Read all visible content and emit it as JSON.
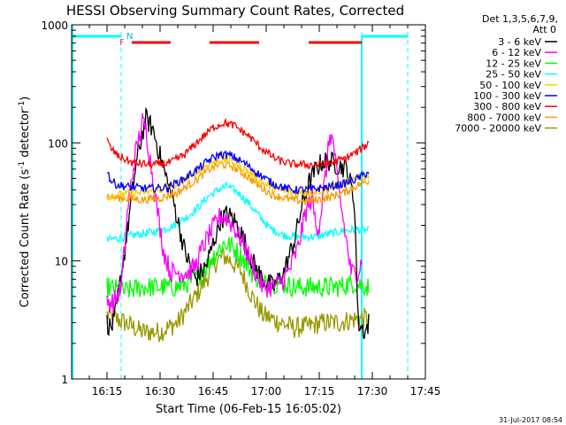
{
  "chart_data": {
    "type": "line",
    "title": "HESSI Observing Summary Count Rates, Corrected",
    "xlabel": "Start Time (06-Feb-15 16:05:02)",
    "ylabel": "Corrected Count Rate (s⁻¹ detector⁻¹)",
    "ylabel_parts": {
      "pre": "Corrected Count Rate (s",
      "exp1": "-1",
      "mid": " detector",
      "exp2": "-1",
      "post": ")"
    },
    "y_scale": "log",
    "ylim": [
      1,
      1000
    ],
    "xlim": [
      "16:05",
      "17:45"
    ],
    "x_ticks": [
      "16:15",
      "16:30",
      "16:45",
      "17:00",
      "17:15",
      "17:30",
      "17:45"
    ],
    "y_ticks": [
      "1",
      "10",
      "100",
      "1000"
    ],
    "grid": false,
    "legend_header": [
      "Det 1,3,5,6,7,9,",
      "Att 0"
    ],
    "legend_position": "right",
    "footer_date": "31-Jul-2017 08:54",
    "flag_labels": {
      "night": "N",
      "flare": "F"
    },
    "night_intervals": [
      [
        "16:05",
        "16:19"
      ],
      [
        "17:27",
        "17:40"
      ]
    ],
    "saa_markers": [
      "16:19",
      "17:27",
      "17:40"
    ],
    "flare_intervals": [
      [
        "16:22",
        "16:33"
      ],
      [
        "16:44",
        "16:58"
      ],
      [
        "17:12",
        "17:27"
      ]
    ],
    "series": [
      {
        "name": "3 - 6 keV",
        "color": "#000000",
        "points": [
          [
            "16:15",
            3
          ],
          [
            "16:16",
            2.7
          ],
          [
            "16:17",
            3
          ],
          [
            "16:20",
            12
          ],
          [
            "16:23",
            60
          ],
          [
            "16:25",
            120
          ],
          [
            "16:26",
            160
          ],
          [
            "16:28",
            130
          ],
          [
            "16:31",
            60
          ],
          [
            "16:34",
            30
          ],
          [
            "16:37",
            12
          ],
          [
            "16:40",
            7
          ],
          [
            "16:43",
            9
          ],
          [
            "16:45",
            14
          ],
          [
            "16:47",
            22
          ],
          [
            "16:49",
            25
          ],
          [
            "16:51",
            22
          ],
          [
            "16:53",
            17
          ],
          [
            "16:56",
            10
          ],
          [
            "16:59",
            7
          ],
          [
            "17:02",
            6
          ],
          [
            "17:05",
            8
          ],
          [
            "17:08",
            15
          ],
          [
            "17:10",
            28
          ],
          [
            "17:12",
            45
          ],
          [
            "17:14",
            60
          ],
          [
            "17:16",
            70
          ],
          [
            "17:18",
            70
          ],
          [
            "17:20",
            65
          ],
          [
            "17:23",
            60
          ],
          [
            "17:25",
            30
          ],
          [
            "17:26",
            3
          ],
          [
            "17:28",
            2.5
          ],
          [
            "17:29",
            3
          ]
        ]
      },
      {
        "name": "6 - 12 keV",
        "color": "#ff00ff",
        "points": [
          [
            "16:15",
            4.5
          ],
          [
            "16:17",
            4.5
          ],
          [
            "16:19",
            6
          ],
          [
            "16:21",
            30
          ],
          [
            "16:23",
            80
          ],
          [
            "16:25",
            150
          ],
          [
            "16:26",
            130
          ],
          [
            "16:27",
            80
          ],
          [
            "16:29",
            30
          ],
          [
            "16:31",
            12
          ],
          [
            "16:33",
            8
          ],
          [
            "16:36",
            8
          ],
          [
            "16:38",
            8
          ],
          [
            "16:40",
            9
          ],
          [
            "16:42",
            13
          ],
          [
            "16:45",
            19
          ],
          [
            "16:47",
            24
          ],
          [
            "16:49",
            23
          ],
          [
            "16:51",
            19
          ],
          [
            "16:54",
            13
          ],
          [
            "16:57",
            8
          ],
          [
            "16:59",
            6
          ],
          [
            "17:02",
            6
          ],
          [
            "17:05",
            7
          ],
          [
            "17:07",
            9
          ],
          [
            "17:09",
            13
          ],
          [
            "17:11",
            25
          ],
          [
            "17:13",
            35
          ],
          [
            "17:14",
            20
          ],
          [
            "17:15",
            20
          ],
          [
            "17:17",
            60
          ],
          [
            "17:18",
            120
          ],
          [
            "17:19",
            100
          ],
          [
            "17:20",
            50
          ],
          [
            "17:22",
            20
          ],
          [
            "17:24",
            8
          ],
          [
            "17:26",
            8
          ],
          [
            "17:27",
            10
          ]
        ]
      },
      {
        "name": "12 - 25 keV",
        "color": "#00ff00",
        "points": [
          [
            "16:15",
            6
          ],
          [
            "16:20",
            5.5
          ],
          [
            "16:25",
            6
          ],
          [
            "16:30",
            6
          ],
          [
            "16:35",
            6
          ],
          [
            "16:40",
            7
          ],
          [
            "16:43",
            9
          ],
          [
            "16:46",
            12
          ],
          [
            "16:48",
            14
          ],
          [
            "16:50",
            13.5
          ],
          [
            "16:53",
            11
          ],
          [
            "16:56",
            8
          ],
          [
            "16:59",
            6.5
          ],
          [
            "17:04",
            6.5
          ],
          [
            "17:08",
            6
          ],
          [
            "17:12",
            6
          ],
          [
            "17:16",
            6
          ],
          [
            "17:20",
            6
          ],
          [
            "17:25",
            6.5
          ],
          [
            "17:29",
            6
          ]
        ]
      },
      {
        "name": "25 - 50 keV",
        "color": "#00ffff",
        "points": [
          [
            "16:15",
            15
          ],
          [
            "16:20",
            16
          ],
          [
            "16:25",
            17
          ],
          [
            "16:30",
            18
          ],
          [
            "16:34",
            20
          ],
          [
            "16:38",
            24
          ],
          [
            "16:41",
            29
          ],
          [
            "16:44",
            36
          ],
          [
            "16:47",
            41
          ],
          [
            "16:49",
            43
          ],
          [
            "16:52",
            38
          ],
          [
            "16:55",
            31
          ],
          [
            "16:58",
            24
          ],
          [
            "17:01",
            19
          ],
          [
            "17:05",
            16.5
          ],
          [
            "17:09",
            16
          ],
          [
            "17:14",
            16
          ],
          [
            "17:18",
            17
          ],
          [
            "17:22",
            18
          ],
          [
            "17:26",
            18.5
          ],
          [
            "17:29",
            18
          ]
        ]
      },
      {
        "name": "50 - 100 keV",
        "color": "#ffcc00",
        "points": [
          [
            "16:15",
            35
          ],
          [
            "16:20",
            37
          ],
          [
            "16:25",
            38
          ],
          [
            "16:30",
            40
          ],
          [
            "16:35",
            45
          ],
          [
            "16:40",
            55
          ],
          [
            "16:44",
            67
          ],
          [
            "16:47",
            72
          ],
          [
            "16:50",
            70
          ],
          [
            "16:54",
            60
          ],
          [
            "16:58",
            48
          ],
          [
            "17:02",
            41
          ],
          [
            "17:07",
            38
          ],
          [
            "17:12",
            38
          ],
          [
            "17:17",
            40
          ],
          [
            "17:22",
            45
          ],
          [
            "17:26",
            50
          ],
          [
            "17:29",
            52
          ]
        ]
      },
      {
        "name": "100 - 300 keV",
        "color": "#0000ff",
        "points": [
          [
            "16:15",
            60
          ],
          [
            "16:16",
            48
          ],
          [
            "16:18",
            44
          ],
          [
            "16:22",
            42
          ],
          [
            "16:27",
            41
          ],
          [
            "16:32",
            42
          ],
          [
            "16:36",
            48
          ],
          [
            "16:40",
            58
          ],
          [
            "16:44",
            72
          ],
          [
            "16:47",
            80
          ],
          [
            "16:50",
            78
          ],
          [
            "16:54",
            67
          ],
          [
            "16:58",
            54
          ],
          [
            "17:02",
            45
          ],
          [
            "17:07",
            40
          ],
          [
            "17:12",
            40
          ],
          [
            "17:17",
            42
          ],
          [
            "17:22",
            45
          ],
          [
            "17:26",
            50
          ],
          [
            "17:29",
            57
          ]
        ]
      },
      {
        "name": "300 - 800 keV",
        "color": "#ff0000",
        "points": [
          [
            "16:15",
            105
          ],
          [
            "16:16",
            90
          ],
          [
            "16:18",
            78
          ],
          [
            "16:22",
            68
          ],
          [
            "16:28",
            65
          ],
          [
            "16:33",
            68
          ],
          [
            "16:37",
            80
          ],
          [
            "16:41",
            105
          ],
          [
            "16:45",
            135
          ],
          [
            "16:48",
            148
          ],
          [
            "16:51",
            140
          ],
          [
            "16:55",
            115
          ],
          [
            "16:59",
            88
          ],
          [
            "17:03",
            72
          ],
          [
            "17:07",
            66
          ],
          [
            "17:12",
            65
          ],
          [
            "17:17",
            66
          ],
          [
            "17:22",
            73
          ],
          [
            "17:26",
            85
          ],
          [
            "17:29",
            100
          ]
        ]
      },
      {
        "name": "800 - 7000 keV",
        "color": "#ff9900",
        "points": [
          [
            "16:15",
            35
          ],
          [
            "16:20",
            34
          ],
          [
            "16:25",
            33
          ],
          [
            "16:30",
            34
          ],
          [
            "16:35",
            38
          ],
          [
            "16:40",
            48
          ],
          [
            "16:44",
            60
          ],
          [
            "16:47",
            66
          ],
          [
            "16:50",
            64
          ],
          [
            "16:54",
            54
          ],
          [
            "16:58",
            43
          ],
          [
            "17:02",
            36
          ],
          [
            "17:07",
            33
          ],
          [
            "17:12",
            32
          ],
          [
            "17:17",
            34
          ],
          [
            "17:22",
            38
          ],
          [
            "17:26",
            44
          ],
          [
            "17:29",
            48
          ]
        ]
      },
      {
        "name": "7000 - 20000 keV",
        "color": "#999900",
        "points": [
          [
            "16:15",
            3.5
          ],
          [
            "16:20",
            3
          ],
          [
            "16:25",
            2.5
          ],
          [
            "16:30",
            2.5
          ],
          [
            "16:35",
            3
          ],
          [
            "16:40",
            5
          ],
          [
            "16:43",
            7
          ],
          [
            "16:46",
            10
          ],
          [
            "16:48",
            11
          ],
          [
            "16:50",
            10
          ],
          [
            "16:53",
            8
          ],
          [
            "16:56",
            5
          ],
          [
            "16:59",
            3.5
          ],
          [
            "17:04",
            3
          ],
          [
            "17:08",
            2.7
          ],
          [
            "17:12",
            2.8
          ],
          [
            "17:16",
            3
          ],
          [
            "17:20",
            3
          ],
          [
            "17:25",
            3.2
          ],
          [
            "17:29",
            3.3
          ]
        ]
      }
    ]
  }
}
